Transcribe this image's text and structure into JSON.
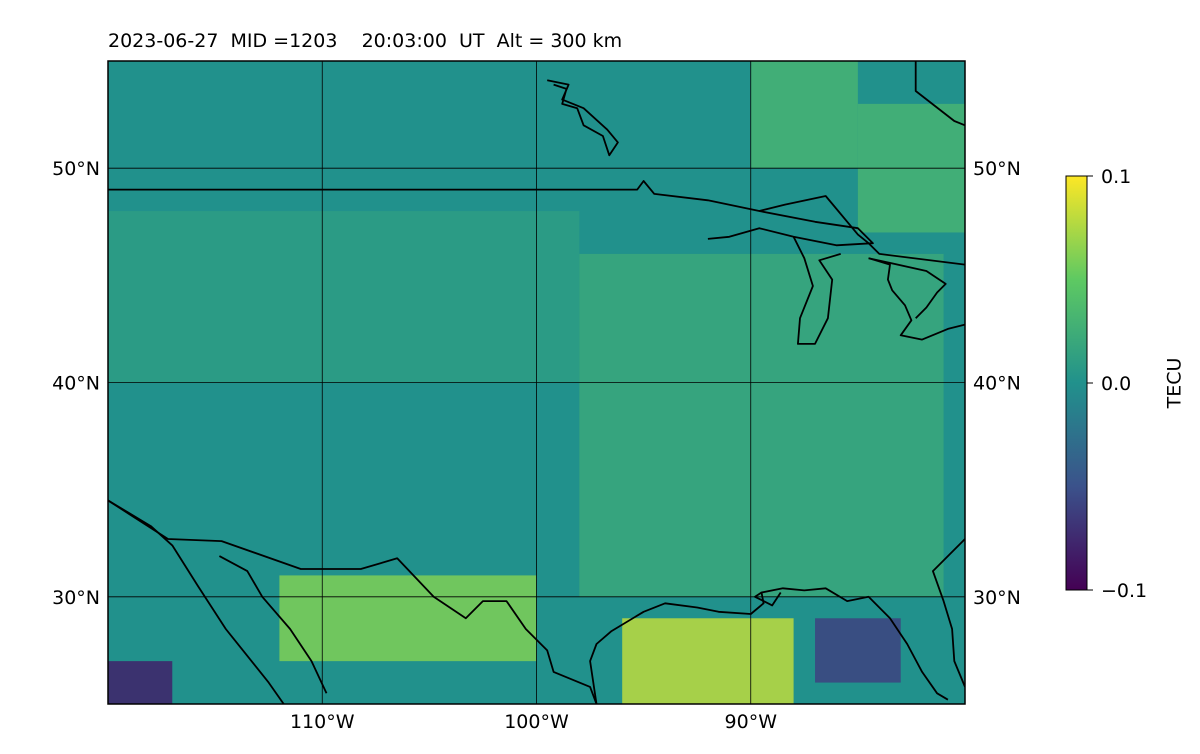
{
  "chart_data": {
    "type": "heatmap",
    "title": "2023-06-27  MID =1203    20:03:00  UT  Alt = 300 km",
    "projection": "map",
    "xlim": [
      -120,
      -80
    ],
    "ylim": [
      25,
      55
    ],
    "x_ticks": [
      -110,
      -100,
      -90
    ],
    "x_tick_labels": [
      "110°W",
      "100°W",
      "90°W"
    ],
    "y_ticks": [
      30,
      40,
      50
    ],
    "y_tick_labels": [
      "30°N",
      "40°N",
      "50°N"
    ],
    "grid": true,
    "colorbar": {
      "label": "TECU",
      "min": -0.1,
      "max": 0.1,
      "ticks": [
        0.1,
        0.0,
        -0.1
      ],
      "tick_labels": [
        "0.1",
        "0.0",
        "−0.1"
      ],
      "colormap": "viridis"
    },
    "regions": [
      {
        "lon": [
          -120,
          -80
        ],
        "lat": [
          25,
          55
        ],
        "value": 0.0
      },
      {
        "lon": [
          -120,
          -98
        ],
        "lat": [
          40,
          48
        ],
        "value": 0.01
      },
      {
        "lon": [
          -98,
          -81
        ],
        "lat": [
          30,
          46
        ],
        "value": 0.02
      },
      {
        "lon": [
          -90,
          -85
        ],
        "lat": [
          50,
          55
        ],
        "value": 0.03
      },
      {
        "lon": [
          -85,
          -80
        ],
        "lat": [
          47,
          53
        ],
        "value": 0.03
      },
      {
        "lon": [
          -112,
          -100
        ],
        "lat": [
          27,
          31
        ],
        "value": 0.06
      },
      {
        "lon": [
          -96,
          -88
        ],
        "lat": [
          25,
          29
        ],
        "value": 0.08
      },
      {
        "lon": [
          -120,
          -117
        ],
        "lat": [
          25,
          27
        ],
        "value": -0.08
      },
      {
        "lon": [
          -87,
          -83
        ],
        "lat": [
          26,
          29
        ],
        "value": -0.06
      }
    ],
    "coastlines": true
  }
}
